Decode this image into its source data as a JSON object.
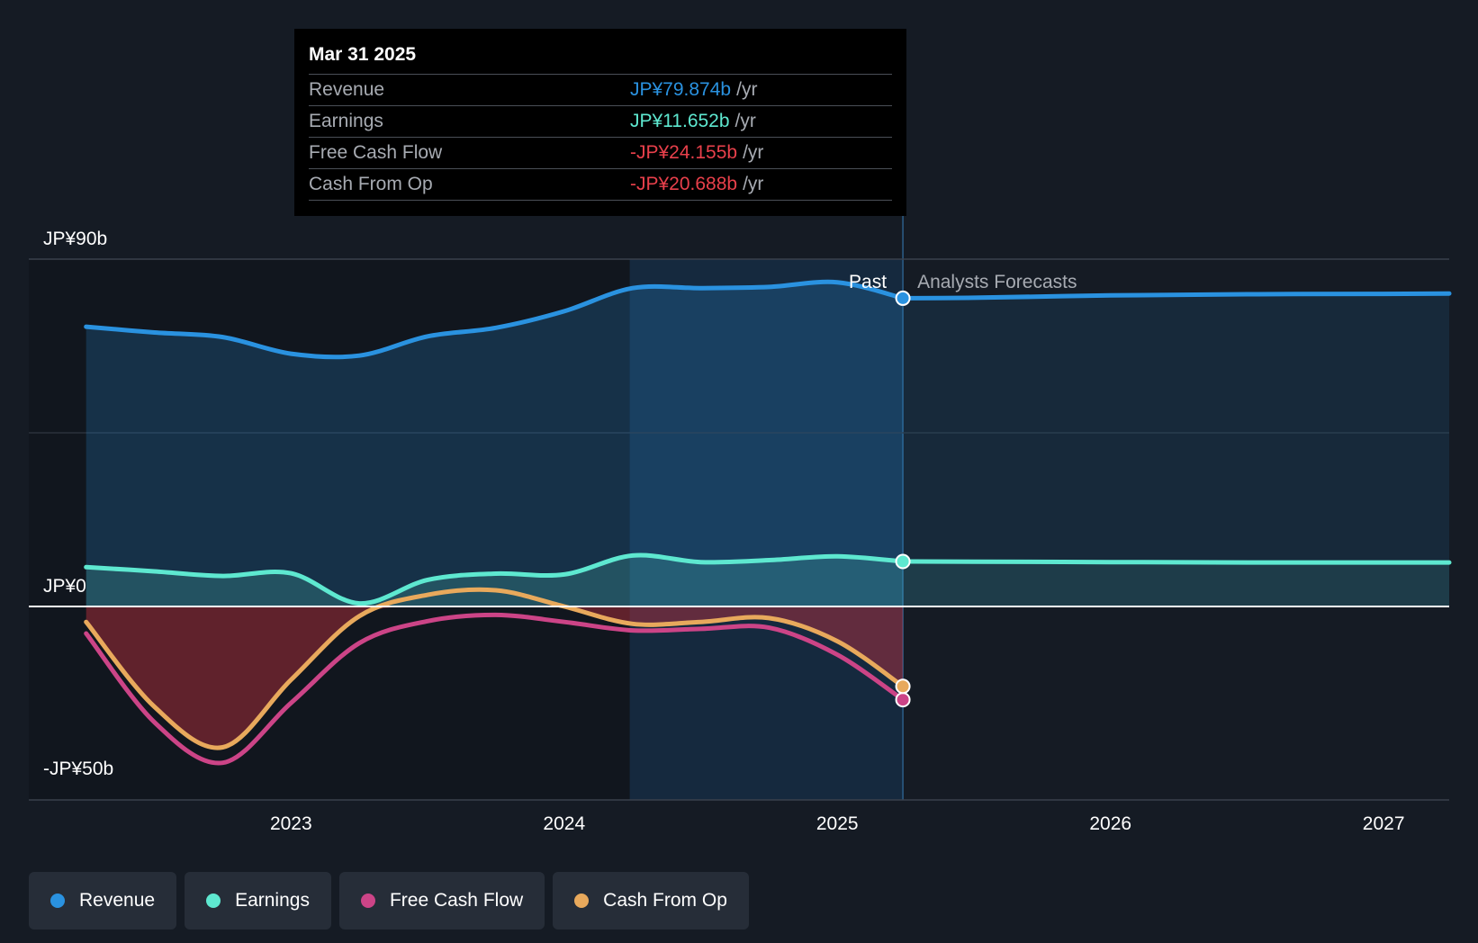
{
  "tooltip": {
    "date": "Mar 31 2025",
    "rows": [
      {
        "label": "Revenue",
        "value": "JP¥79.874b",
        "unit": "/yr",
        "color": "#2a92e0"
      },
      {
        "label": "Earnings",
        "value": "JP¥11.652b",
        "unit": "/yr",
        "color": "#5ee8d0"
      },
      {
        "label": "Free Cash Flow",
        "value": "-JP¥24.155b",
        "unit": "/yr",
        "color": "#e8404b"
      },
      {
        "label": "Cash From Op",
        "value": "-JP¥20.688b",
        "unit": "/yr",
        "color": "#e8404b"
      }
    ]
  },
  "legend": [
    {
      "label": "Revenue",
      "color": "#2a92e0"
    },
    {
      "label": "Earnings",
      "color": "#5ee8d0"
    },
    {
      "label": "Free Cash Flow",
      "color": "#cc4487"
    },
    {
      "label": "Cash From Op",
      "color": "#e8a95c"
    }
  ],
  "chart_data": {
    "type": "line",
    "title": "",
    "xlabel": "",
    "ylabel": "",
    "ylim": [
      -50,
      90
    ],
    "xlim": [
      2022.04,
      2027.24
    ],
    "y_tick_labels": [
      {
        "value": 90,
        "label": "JP¥90b"
      },
      {
        "value": 0,
        "label": "JP¥0"
      },
      {
        "value": -50,
        "label": "-JP¥50b"
      }
    ],
    "x_ticks": [
      {
        "value": 2023,
        "label": "2023"
      },
      {
        "value": 2024,
        "label": "2024"
      },
      {
        "value": 2025,
        "label": "2025"
      },
      {
        "value": 2026,
        "label": "2026"
      },
      {
        "value": 2027,
        "label": "2027"
      }
    ],
    "past_label": "Past",
    "forecast_label": "Analysts Forecasts",
    "past_end": 2025.24,
    "highlight_start": 2024.24,
    "series": [
      {
        "name": "Revenue",
        "color": "#2a92e0",
        "fill": true,
        "x": [
          2022.25,
          2022.5,
          2022.75,
          2023.0,
          2023.25,
          2023.5,
          2023.75,
          2024.0,
          2024.25,
          2024.5,
          2024.75,
          2025.0,
          2025.24
        ],
        "values": [
          72.5,
          71.0,
          69.8,
          65.5,
          65.0,
          70.0,
          72.2,
          76.5,
          82.5,
          82.5,
          82.8,
          84.0,
          79.874
        ],
        "forecast_x": [
          2025.24,
          2025.5,
          2026.0,
          2026.5,
          2027.0,
          2027.24
        ],
        "forecast_values": [
          79.874,
          80.0,
          80.6,
          80.9,
          81.0,
          81.1
        ]
      },
      {
        "name": "Earnings",
        "color": "#5ee8d0",
        "fill": true,
        "x": [
          2022.25,
          2022.5,
          2022.75,
          2023.0,
          2023.25,
          2023.5,
          2023.75,
          2024.0,
          2024.25,
          2024.5,
          2024.75,
          2025.0,
          2025.24
        ],
        "values": [
          10.2,
          9.1,
          7.9,
          8.6,
          0.8,
          6.9,
          8.5,
          8.3,
          13.2,
          11.5,
          12.0,
          13.0,
          11.652
        ],
        "forecast_x": [
          2025.24,
          2025.5,
          2026.0,
          2026.5,
          2027.0,
          2027.24
        ],
        "forecast_values": [
          11.652,
          11.6,
          11.5,
          11.4,
          11.4,
          11.4
        ]
      },
      {
        "name": "Free Cash Flow",
        "color": "#cc4487",
        "fill": false,
        "x": [
          2022.25,
          2022.5,
          2022.75,
          2023.0,
          2023.25,
          2023.5,
          2023.75,
          2024.0,
          2024.25,
          2024.5,
          2024.75,
          2025.0,
          2025.24
        ],
        "values": [
          -7.0,
          -30.0,
          -40.5,
          -25.0,
          -9.5,
          -3.8,
          -2.2,
          -4.0,
          -6.2,
          -5.8,
          -5.5,
          -12.5,
          -24.155
        ]
      },
      {
        "name": "Cash From Op",
        "color": "#e8a95c",
        "fill": false,
        "x": [
          2022.25,
          2022.5,
          2022.75,
          2023.0,
          2023.25,
          2023.5,
          2023.75,
          2024.0,
          2024.25,
          2024.5,
          2024.75,
          2025.0,
          2025.24
        ],
        "values": [
          -4.0,
          -26.0,
          -36.5,
          -19.0,
          -2.5,
          3.0,
          4.2,
          0.0,
          -4.5,
          -4.0,
          -3.0,
          -9.0,
          -20.688
        ]
      }
    ]
  }
}
